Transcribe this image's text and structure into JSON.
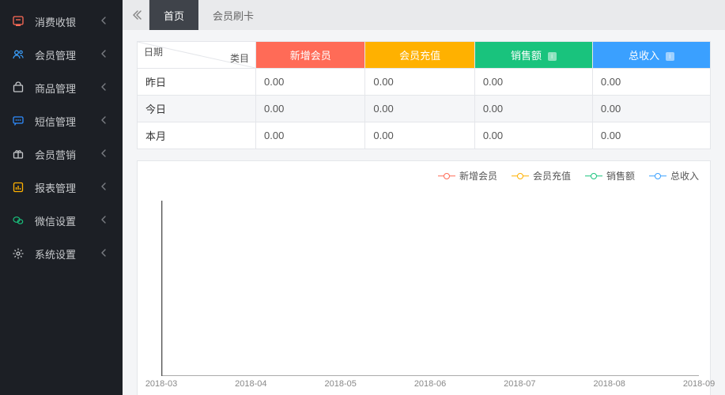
{
  "sidebar": {
    "items": [
      {
        "label": "消费收银",
        "icon": "pos-icon",
        "icon_color": "#ff6b57"
      },
      {
        "label": "会员管理",
        "icon": "members-icon",
        "icon_color": "#3aa0ff"
      },
      {
        "label": "商品管理",
        "icon": "goods-icon",
        "icon_color": "#c7c9cc"
      },
      {
        "label": "短信管理",
        "icon": "sms-icon",
        "icon_color": "#2f8cff"
      },
      {
        "label": "会员营销",
        "icon": "gift-icon",
        "icon_color": "#c7c9cc"
      },
      {
        "label": "报表管理",
        "icon": "report-icon",
        "icon_color": "#ffb100"
      },
      {
        "label": "微信设置",
        "icon": "wechat-icon",
        "icon_color": "#19c37d"
      },
      {
        "label": "系统设置",
        "icon": "gear-icon",
        "icon_color": "#c7c9cc"
      }
    ]
  },
  "tabs": [
    {
      "label": "首页",
      "active": true
    },
    {
      "label": "会员刷卡",
      "active": false
    }
  ],
  "table": {
    "diag_row_label": "日期",
    "diag_col_label": "类目",
    "header_cells": [
      {
        "label": "新增会员",
        "bg": "#ff6b57",
        "info": false
      },
      {
        "label": "会员充值",
        "bg": "#ffb100",
        "info": false
      },
      {
        "label": "销售额",
        "bg": "#19c37d",
        "info": true
      },
      {
        "label": "总收入",
        "bg": "#3aa0ff",
        "info": true
      }
    ],
    "rows": [
      {
        "label": "昨日",
        "values": [
          "0.00",
          "0.00",
          "0.00",
          "0.00"
        ]
      },
      {
        "label": "今日",
        "values": [
          "0.00",
          "0.00",
          "0.00",
          "0.00"
        ]
      },
      {
        "label": "本月",
        "values": [
          "0.00",
          "0.00",
          "0.00",
          "0.00"
        ]
      }
    ]
  },
  "chart": {
    "legend": [
      {
        "label": "新增会员",
        "color": "#ff6b57"
      },
      {
        "label": "会员充值",
        "color": "#ffb100"
      },
      {
        "label": "销售额",
        "color": "#19c37d"
      },
      {
        "label": "总收入",
        "color": "#3aa0ff"
      }
    ],
    "x_labels": [
      "2018-03",
      "2018-04",
      "2018-05",
      "2018-06",
      "2018-07",
      "2018-08",
      "2018-09"
    ],
    "axis_color": "#555555",
    "label_color": "#888888",
    "label_fontsize": 11
  }
}
